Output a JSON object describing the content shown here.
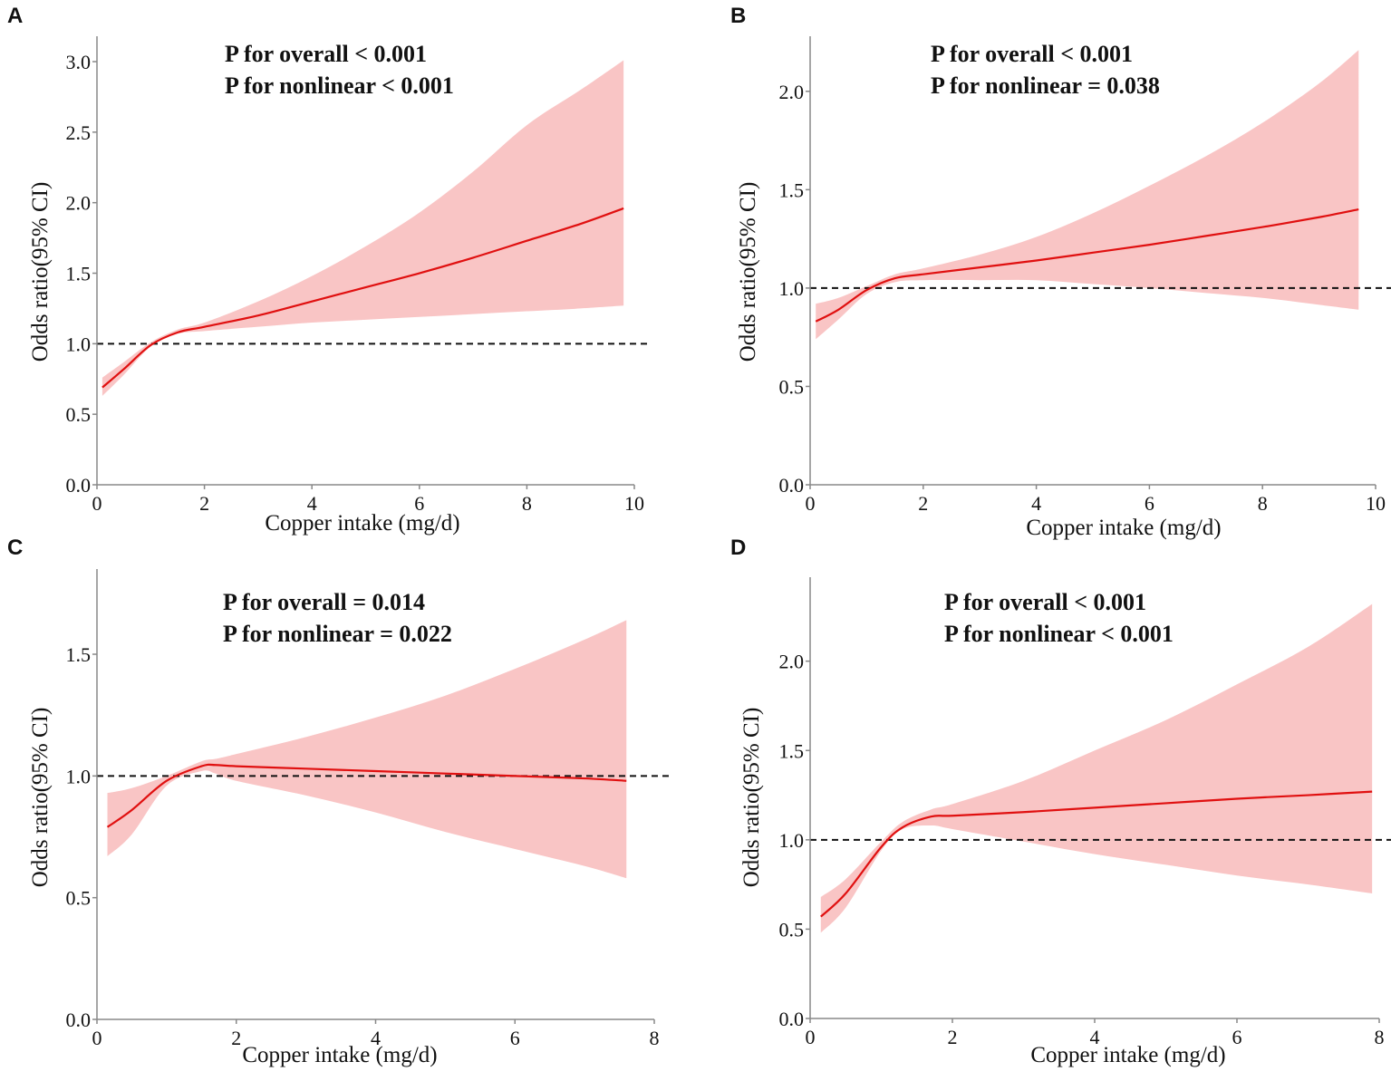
{
  "colors": {
    "line": "#e01010",
    "band": "#f9c5c5",
    "ref": "#111111",
    "axis": "#888888"
  },
  "chart_data": [
    {
      "panel": "A",
      "type": "line",
      "annotations": [
        "P for overall < 0.001",
        "P for nonlinear < 0.001"
      ],
      "xlabel": "Copper intake (mg/d)",
      "ylabel": "Odds ratio(95% CI)",
      "xlim": [
        0,
        10
      ],
      "ylim": [
        0,
        3.18
      ],
      "xticks": [
        0,
        2,
        4,
        6,
        8,
        10
      ],
      "yticks": [
        "0.0",
        "0.5",
        "1.0",
        "1.5",
        "2.0",
        "2.5",
        "3.0"
      ],
      "reference_line": 1.0,
      "x": [
        0.1,
        0.5,
        1.0,
        1.5,
        2,
        3,
        4,
        5,
        6,
        7,
        8,
        9,
        9.8
      ],
      "estimate": [
        0.69,
        0.82,
        0.99,
        1.08,
        1.12,
        1.2,
        1.3,
        1.4,
        1.5,
        1.61,
        1.73,
        1.85,
        1.96
      ],
      "lower": [
        0.63,
        0.78,
        0.98,
        1.07,
        1.09,
        1.12,
        1.15,
        1.17,
        1.19,
        1.21,
        1.23,
        1.25,
        1.27
      ],
      "upper": [
        0.76,
        0.87,
        1.01,
        1.1,
        1.15,
        1.3,
        1.48,
        1.69,
        1.93,
        2.22,
        2.55,
        2.8,
        3.01
      ]
    },
    {
      "panel": "B",
      "type": "line",
      "annotations": [
        "P for overall < 0.001",
        "P for nonlinear = 0.038"
      ],
      "xlabel": "Copper intake (mg/d)",
      "ylabel": "Odds ratio(95% CI)",
      "xlim": [
        0,
        10
      ],
      "ylim": [
        0,
        2.28
      ],
      "xticks": [
        0,
        2,
        4,
        6,
        8,
        10
      ],
      "yticks": [
        "0.0",
        "0.5",
        "1.0",
        "1.5",
        "2.0"
      ],
      "reference_line": 1.0,
      "x": [
        0.1,
        0.5,
        1.0,
        1.5,
        2,
        3,
        4,
        5,
        6,
        7,
        8,
        9,
        9.7
      ],
      "estimate": [
        0.83,
        0.89,
        0.99,
        1.05,
        1.07,
        1.105,
        1.14,
        1.18,
        1.22,
        1.265,
        1.31,
        1.36,
        1.4
      ],
      "lower": [
        0.74,
        0.84,
        0.97,
        1.03,
        1.04,
        1.04,
        1.04,
        1.02,
        1.0,
        0.975,
        0.95,
        0.915,
        0.89
      ],
      "upper": [
        0.92,
        0.95,
        1.01,
        1.07,
        1.1,
        1.17,
        1.26,
        1.38,
        1.52,
        1.67,
        1.84,
        2.04,
        2.21
      ]
    },
    {
      "panel": "C",
      "type": "line",
      "annotations": [
        "P for overall = 0.014",
        "P for nonlinear = 0.022"
      ],
      "xlabel": "Copper intake (mg/d)",
      "ylabel": "Odds ratio(95% CI)",
      "xlim": [
        0,
        8
      ],
      "ylim": [
        0,
        1.85
      ],
      "xticks": [
        0,
        2,
        4,
        6,
        8
      ],
      "yticks": [
        "0.0",
        "0.5",
        "1.0",
        "1.5"
      ],
      "reference_line": 1.0,
      "x": [
        0.15,
        0.5,
        1.0,
        1.5,
        1.7,
        2,
        3,
        4,
        5,
        6,
        7,
        7.6
      ],
      "estimate": [
        0.79,
        0.86,
        0.98,
        1.04,
        1.045,
        1.04,
        1.03,
        1.02,
        1.01,
        1.0,
        0.99,
        0.98
      ],
      "lower": [
        0.67,
        0.76,
        0.96,
        1.02,
        1.01,
        0.98,
        0.92,
        0.85,
        0.77,
        0.7,
        0.63,
        0.58
      ],
      "upper": [
        0.93,
        0.95,
        1.0,
        1.06,
        1.07,
        1.09,
        1.16,
        1.24,
        1.33,
        1.44,
        1.56,
        1.64
      ]
    },
    {
      "panel": "D",
      "type": "line",
      "annotations": [
        "P for overall < 0.001",
        "P for nonlinear < 0.001"
      ],
      "xlabel": "Copper intake (mg/d)",
      "ylabel": "Odds ratio(95% CI)",
      "xlim": [
        0,
        8
      ],
      "ylim": [
        0,
        2.47
      ],
      "xticks": [
        0,
        2,
        4,
        6,
        8
      ],
      "yticks": [
        "0.0",
        "0.5",
        "1.0",
        "1.5",
        "2.0"
      ],
      "reference_line": 1.0,
      "x": [
        0.15,
        0.5,
        1.0,
        1.3,
        1.7,
        2,
        3,
        4,
        5,
        6,
        7,
        7.9
      ],
      "estimate": [
        0.57,
        0.7,
        0.96,
        1.07,
        1.13,
        1.135,
        1.155,
        1.18,
        1.205,
        1.23,
        1.25,
        1.27
      ],
      "lower": [
        0.48,
        0.62,
        0.94,
        1.06,
        1.08,
        1.06,
        0.99,
        0.92,
        0.86,
        0.8,
        0.75,
        0.7
      ],
      "upper": [
        0.68,
        0.78,
        0.99,
        1.1,
        1.17,
        1.2,
        1.33,
        1.5,
        1.67,
        1.87,
        2.08,
        2.32
      ]
    }
  ]
}
